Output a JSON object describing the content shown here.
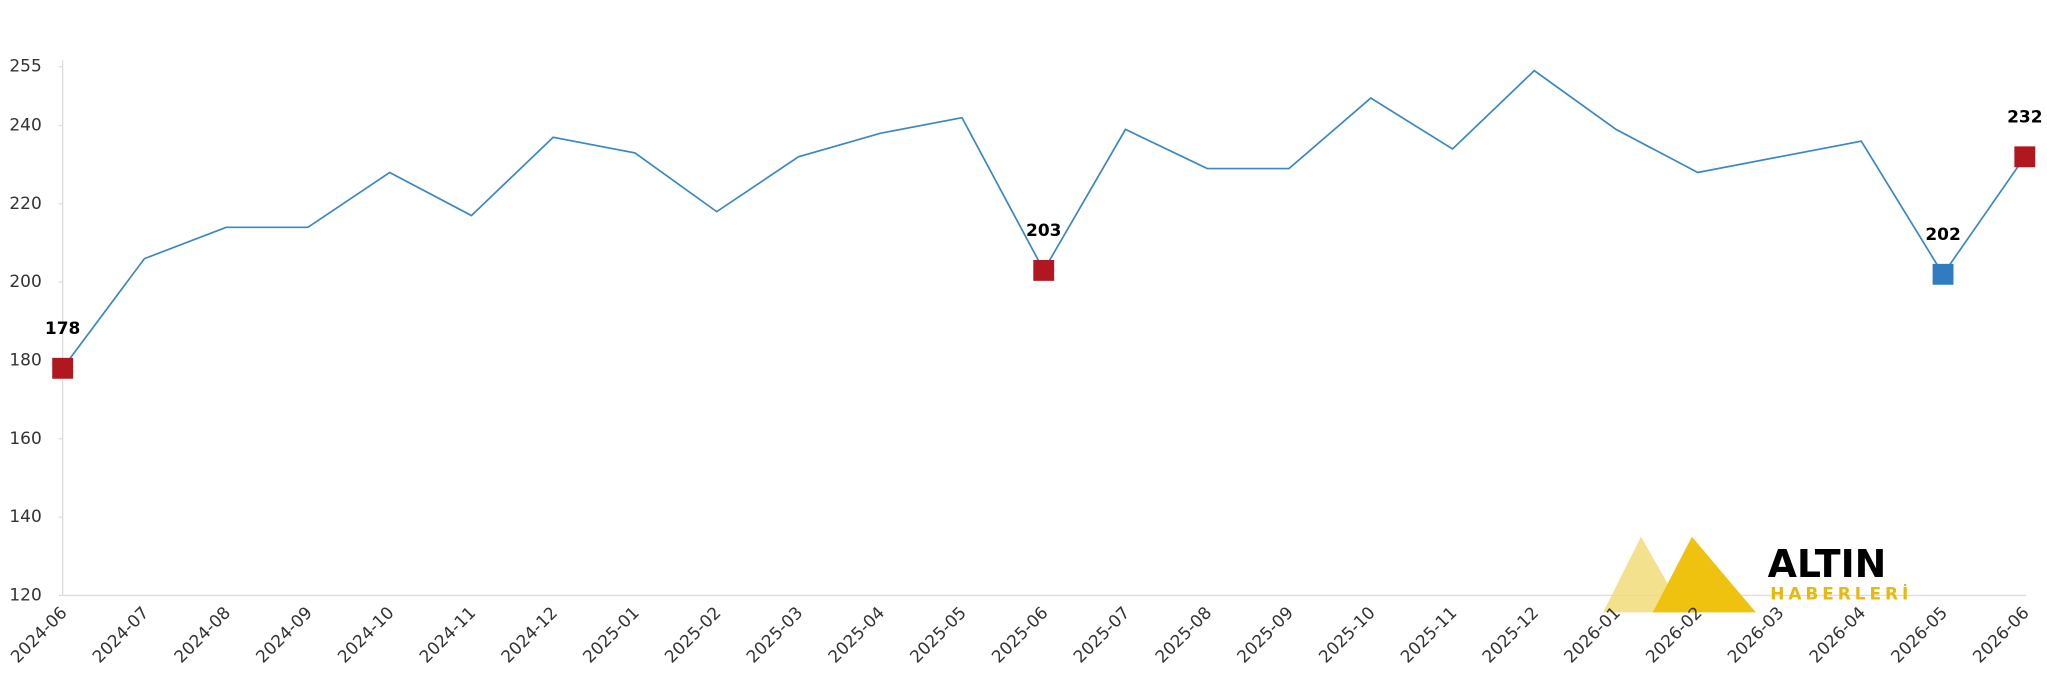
{
  "chart_data": {
    "type": "line",
    "categories": [
      "2024-06",
      "2024-07",
      "2024-08",
      "2024-09",
      "2024-10",
      "2024-11",
      "2024-12",
      "2025-01",
      "2025-02",
      "2025-03",
      "2025-04",
      "2025-05",
      "2025-06",
      "2025-07",
      "2025-08",
      "2025-09",
      "2025-10",
      "2025-11",
      "2025-12",
      "2026-01",
      "2026-02",
      "2026-03",
      "2026-04",
      "2026-05",
      "2026-06"
    ],
    "series": [
      {
        "color": "#3a87c4",
        "values": [
          178,
          206,
          214,
          214,
          228,
          217,
          237,
          233,
          218,
          232,
          238,
          242,
          203,
          239,
          229,
          229,
          247,
          234,
          254,
          239,
          228,
          232,
          236,
          202,
          232
        ],
        "marker_colors": [
          "#b0171f",
          null,
          null,
          null,
          null,
          null,
          null,
          null,
          null,
          null,
          null,
          null,
          "#b0171f",
          null,
          null,
          null,
          null,
          null,
          null,
          null,
          null,
          null,
          null,
          "#2f7cc0",
          "#b0171f"
        ]
      }
    ],
    "ylim": [
      120,
      255
    ],
    "yticks": [
      120,
      140,
      160,
      180,
      200,
      220,
      240,
      255
    ],
    "grid": false
  },
  "logo": {
    "title": "ALTIN",
    "subtitle": "HABERLERİ"
  }
}
